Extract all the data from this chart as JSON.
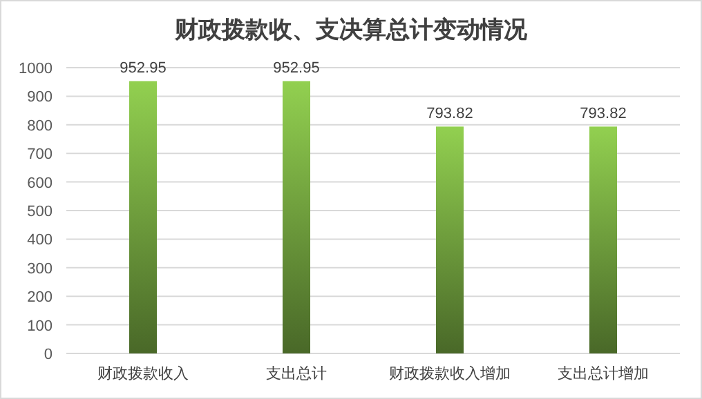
{
  "chart_data": {
    "type": "bar",
    "title": "财政拨款收、支决算总计变动情况",
    "categories": [
      "财政拨款收入",
      "支出总计",
      "财政拨款收入增加",
      "支出总计增加"
    ],
    "values": [
      952.95,
      952.95,
      793.82,
      793.82
    ],
    "color": "#92d050",
    "ylim": [
      0,
      1000
    ],
    "yticks": [
      0,
      100,
      200,
      300,
      400,
      500,
      600,
      700,
      800,
      900,
      1000
    ],
    "grid": "y",
    "data_labels": true
  }
}
